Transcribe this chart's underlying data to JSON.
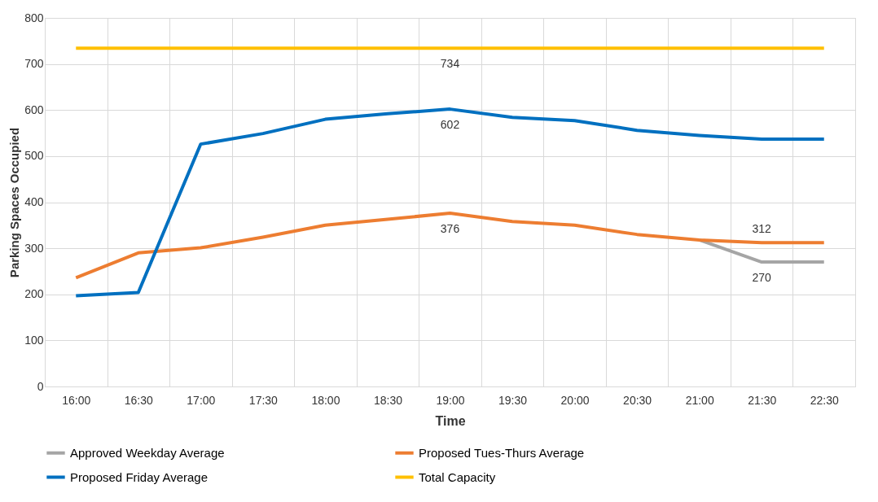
{
  "chart_data": {
    "type": "line",
    "xlabel": "Time",
    "ylabel": "Parking Spaces Occupied",
    "categories": [
      "16:00",
      "16:30",
      "17:00",
      "17:30",
      "18:00",
      "18:30",
      "19:00",
      "19:30",
      "20:00",
      "20:30",
      "21:00",
      "21:30",
      "22:30"
    ],
    "ylim": [
      0,
      800
    ],
    "yticks": [
      0,
      100,
      200,
      300,
      400,
      500,
      600,
      700,
      800
    ],
    "grid": true,
    "legend": "bottom",
    "marker": "none",
    "line_style": "solid",
    "series": [
      {
        "name": "Approved Weekday Average",
        "color": "#a5a5a5",
        "values": [
          null,
          null,
          null,
          null,
          null,
          null,
          null,
          null,
          null,
          null,
          318,
          270,
          270
        ],
        "value_labels": [
          null,
          null,
          null,
          null,
          null,
          null,
          null,
          null,
          null,
          null,
          null,
          "270",
          null
        ]
      },
      {
        "name": "Proposed Tues-Thurs Average",
        "color": "#ed7d31",
        "values": [
          236,
          290,
          301,
          324,
          350,
          363,
          376,
          358,
          350,
          330,
          318,
          312,
          312
        ],
        "value_labels": [
          null,
          null,
          null,
          null,
          null,
          null,
          "376",
          null,
          null,
          null,
          null,
          "312",
          null
        ]
      },
      {
        "name": "Proposed Friday Average",
        "color": "#0070c0",
        "values": [
          197,
          204,
          526,
          549,
          580,
          592,
          602,
          584,
          577,
          556,
          545,
          537,
          537
        ],
        "value_labels": [
          null,
          null,
          null,
          null,
          null,
          null,
          "602",
          null,
          null,
          null,
          null,
          null,
          null
        ]
      },
      {
        "name": "Total Capacity",
        "color": "#ffc000",
        "values": [
          734,
          734,
          734,
          734,
          734,
          734,
          734,
          734,
          734,
          734,
          734,
          734,
          734
        ],
        "value_labels": [
          null,
          null,
          null,
          null,
          null,
          null,
          "734",
          null,
          null,
          null,
          null,
          null,
          null
        ]
      }
    ]
  }
}
